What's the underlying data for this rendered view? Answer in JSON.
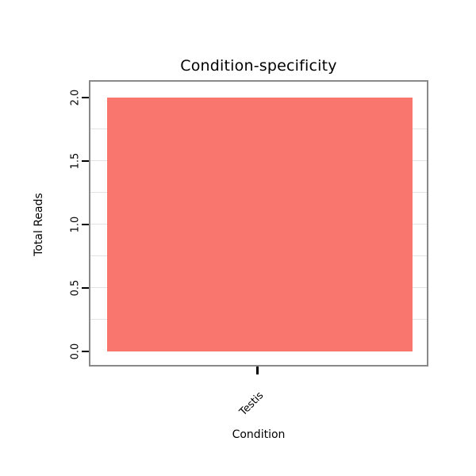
{
  "chart_data": {
    "type": "bar",
    "title": "Condition-specificity",
    "xlabel": "Condition",
    "ylabel": "Total Reads",
    "categories": [
      "Testis"
    ],
    "values": [
      2.0
    ],
    "ylim": [
      0,
      2
    ],
    "yticks": [
      0,
      0.5,
      1,
      1.5,
      2
    ],
    "ytick_labels": [
      "0.0",
      "0.5",
      "1.0",
      "1.5",
      "2.0"
    ],
    "grid": true,
    "grid_step": 0.25,
    "legend": "none",
    "bar_color": "#F8766D",
    "border_color": "#898989",
    "grid_color": "#E3E3E3",
    "background": "#FFFFFF"
  }
}
